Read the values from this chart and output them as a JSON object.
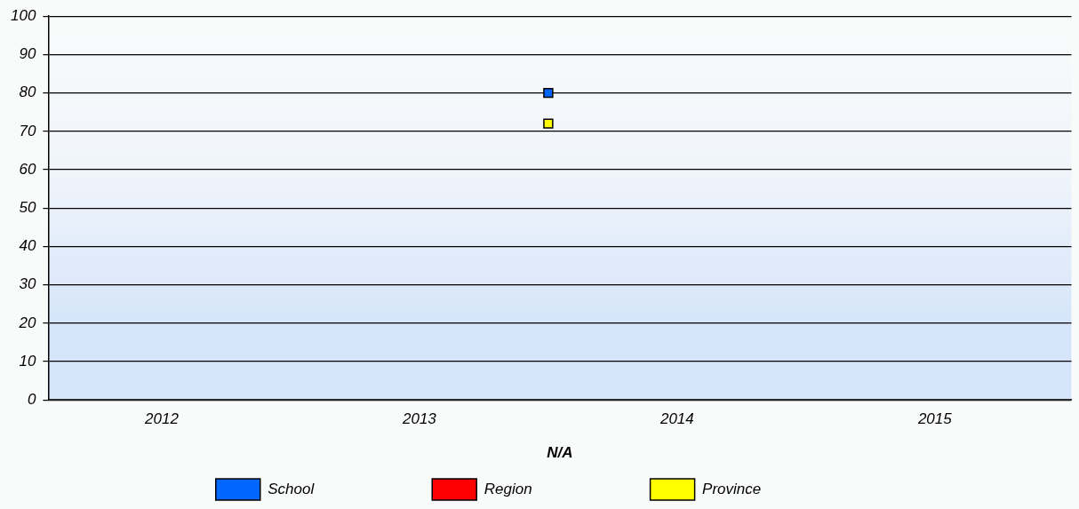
{
  "chart_data": {
    "type": "scatter",
    "xlabel": "N/A",
    "x": [
      2013.5
    ],
    "series": [
      {
        "name": "School",
        "color": "#0066ff",
        "values": [
          80
        ]
      },
      {
        "name": "Region",
        "color": "#ff0000",
        "values": [
          null
        ]
      },
      {
        "name": "Province",
        "color": "#ffff00",
        "values": [
          72
        ]
      }
    ],
    "xlim": [
      2011.56,
      2015.53
    ],
    "xticks": [
      2012,
      2013,
      2014,
      2015
    ],
    "ylim": [
      0,
      100
    ],
    "yticks": [
      0,
      10,
      20,
      30,
      40,
      50,
      60,
      70,
      80,
      90,
      100
    ],
    "grid": "y",
    "legend": "bottom",
    "marker": "square"
  }
}
